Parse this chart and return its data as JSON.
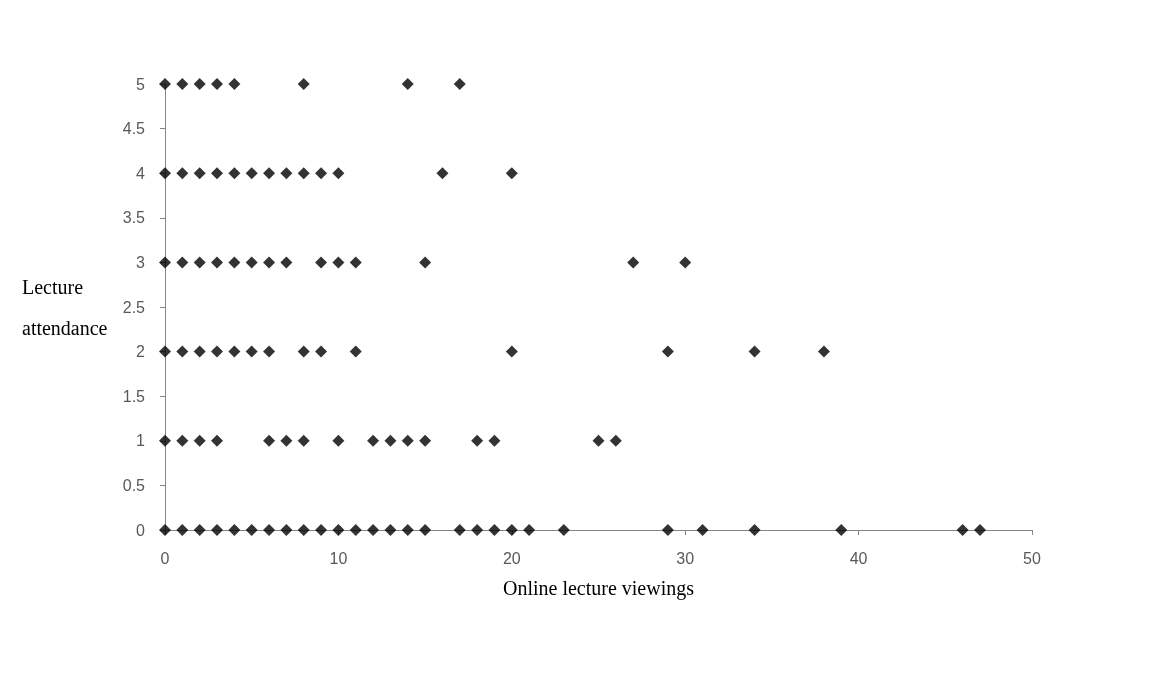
{
  "chart_data": {
    "type": "scatter",
    "xlabel": "Online lecture viewings",
    "ylabel": "Lecture attendance",
    "x": [
      0,
      1,
      2,
      3,
      4,
      8,
      14,
      17,
      0,
      1,
      2,
      3,
      4,
      5,
      6,
      7,
      8,
      9,
      10,
      16,
      20,
      0,
      1,
      2,
      3,
      4,
      5,
      6,
      7,
      9,
      10,
      11,
      15,
      27,
      30,
      0,
      1,
      2,
      3,
      4,
      5,
      6,
      8,
      9,
      11,
      20,
      29,
      34,
      38,
      0,
      1,
      2,
      3,
      6,
      7,
      8,
      10,
      12,
      13,
      14,
      15,
      18,
      19,
      25,
      26,
      0,
      1,
      2,
      3,
      4,
      5,
      6,
      7,
      8,
      9,
      10,
      11,
      12,
      13,
      14,
      15,
      17,
      18,
      19,
      20,
      21,
      23,
      29,
      31,
      34,
      39,
      46,
      47
    ],
    "series": [
      {
        "color": "#000000",
        "values": [
          5,
          5,
          5,
          5,
          5,
          5,
          5,
          5,
          4,
          4,
          4,
          4,
          4,
          4,
          4,
          4,
          4,
          4,
          4,
          4,
          4,
          3,
          3,
          3,
          3,
          3,
          3,
          3,
          3,
          3,
          3,
          3,
          3,
          3,
          3,
          2,
          2,
          2,
          2,
          2,
          2,
          2,
          2,
          2,
          2,
          2,
          2,
          2,
          2,
          1,
          1,
          1,
          1,
          1,
          1,
          1,
          1,
          1,
          1,
          1,
          1,
          1,
          1,
          1,
          1,
          0,
          0,
          0,
          0,
          0,
          0,
          0,
          0,
          0,
          0,
          0,
          0,
          0,
          0,
          0,
          0,
          0,
          0,
          0,
          0,
          0,
          0,
          0,
          0,
          0,
          0,
          0,
          0
        ]
      }
    ],
    "xlim": [
      0,
      50
    ],
    "xticks": [
      0,
      10,
      20,
      30,
      40,
      50
    ],
    "ylim": [
      0,
      5
    ],
    "yticks": [
      0,
      0.5,
      1,
      1.5,
      2,
      2.5,
      3,
      3.5,
      4,
      4.5,
      5
    ],
    "marker": "diamond",
    "grid": false
  }
}
